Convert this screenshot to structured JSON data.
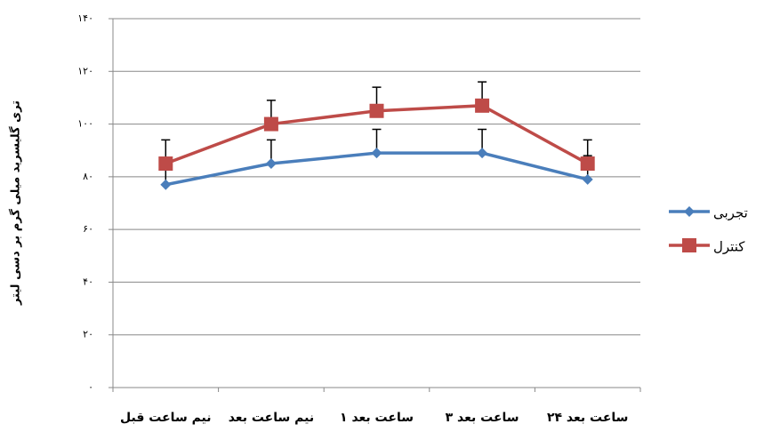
{
  "chart_data": {
    "type": "line",
    "ylabel": "تری گلیسرید میلی گرم بر دسی لیتر",
    "categories": [
      "نیم ساعت قبل",
      "نیم ساعت بعد",
      "۱ ساعت بعد",
      "۳ ساعت بعد",
      "۲۴ ساعت بعد"
    ],
    "series": [
      {
        "name": "تجربی",
        "color": "#4a7ebb",
        "marker": "diamond",
        "values": [
          77,
          85,
          89,
          89,
          79
        ],
        "errors": [
          9,
          9,
          9,
          9,
          9
        ]
      },
      {
        "name": "کنترل",
        "color": "#be4b48",
        "marker": "square",
        "values": [
          85,
          100,
          105,
          107,
          85
        ],
        "errors": [
          9,
          9,
          9,
          9,
          9
        ]
      }
    ],
    "ylim": [
      0,
      140
    ],
    "yticks": [
      {
        "value": 0,
        "label": "۰"
      },
      {
        "value": 20,
        "label": "۲۰"
      },
      {
        "value": 40,
        "label": "۴۰"
      },
      {
        "value": 60,
        "label": "۶۰"
      },
      {
        "value": 80,
        "label": "۸۰"
      },
      {
        "value": 100,
        "label": "۱۰۰"
      },
      {
        "value": 120,
        "label": "۱۲۰"
      },
      {
        "value": 140,
        "label": "۱۴۰"
      }
    ],
    "grid": true,
    "legend": "right"
  }
}
